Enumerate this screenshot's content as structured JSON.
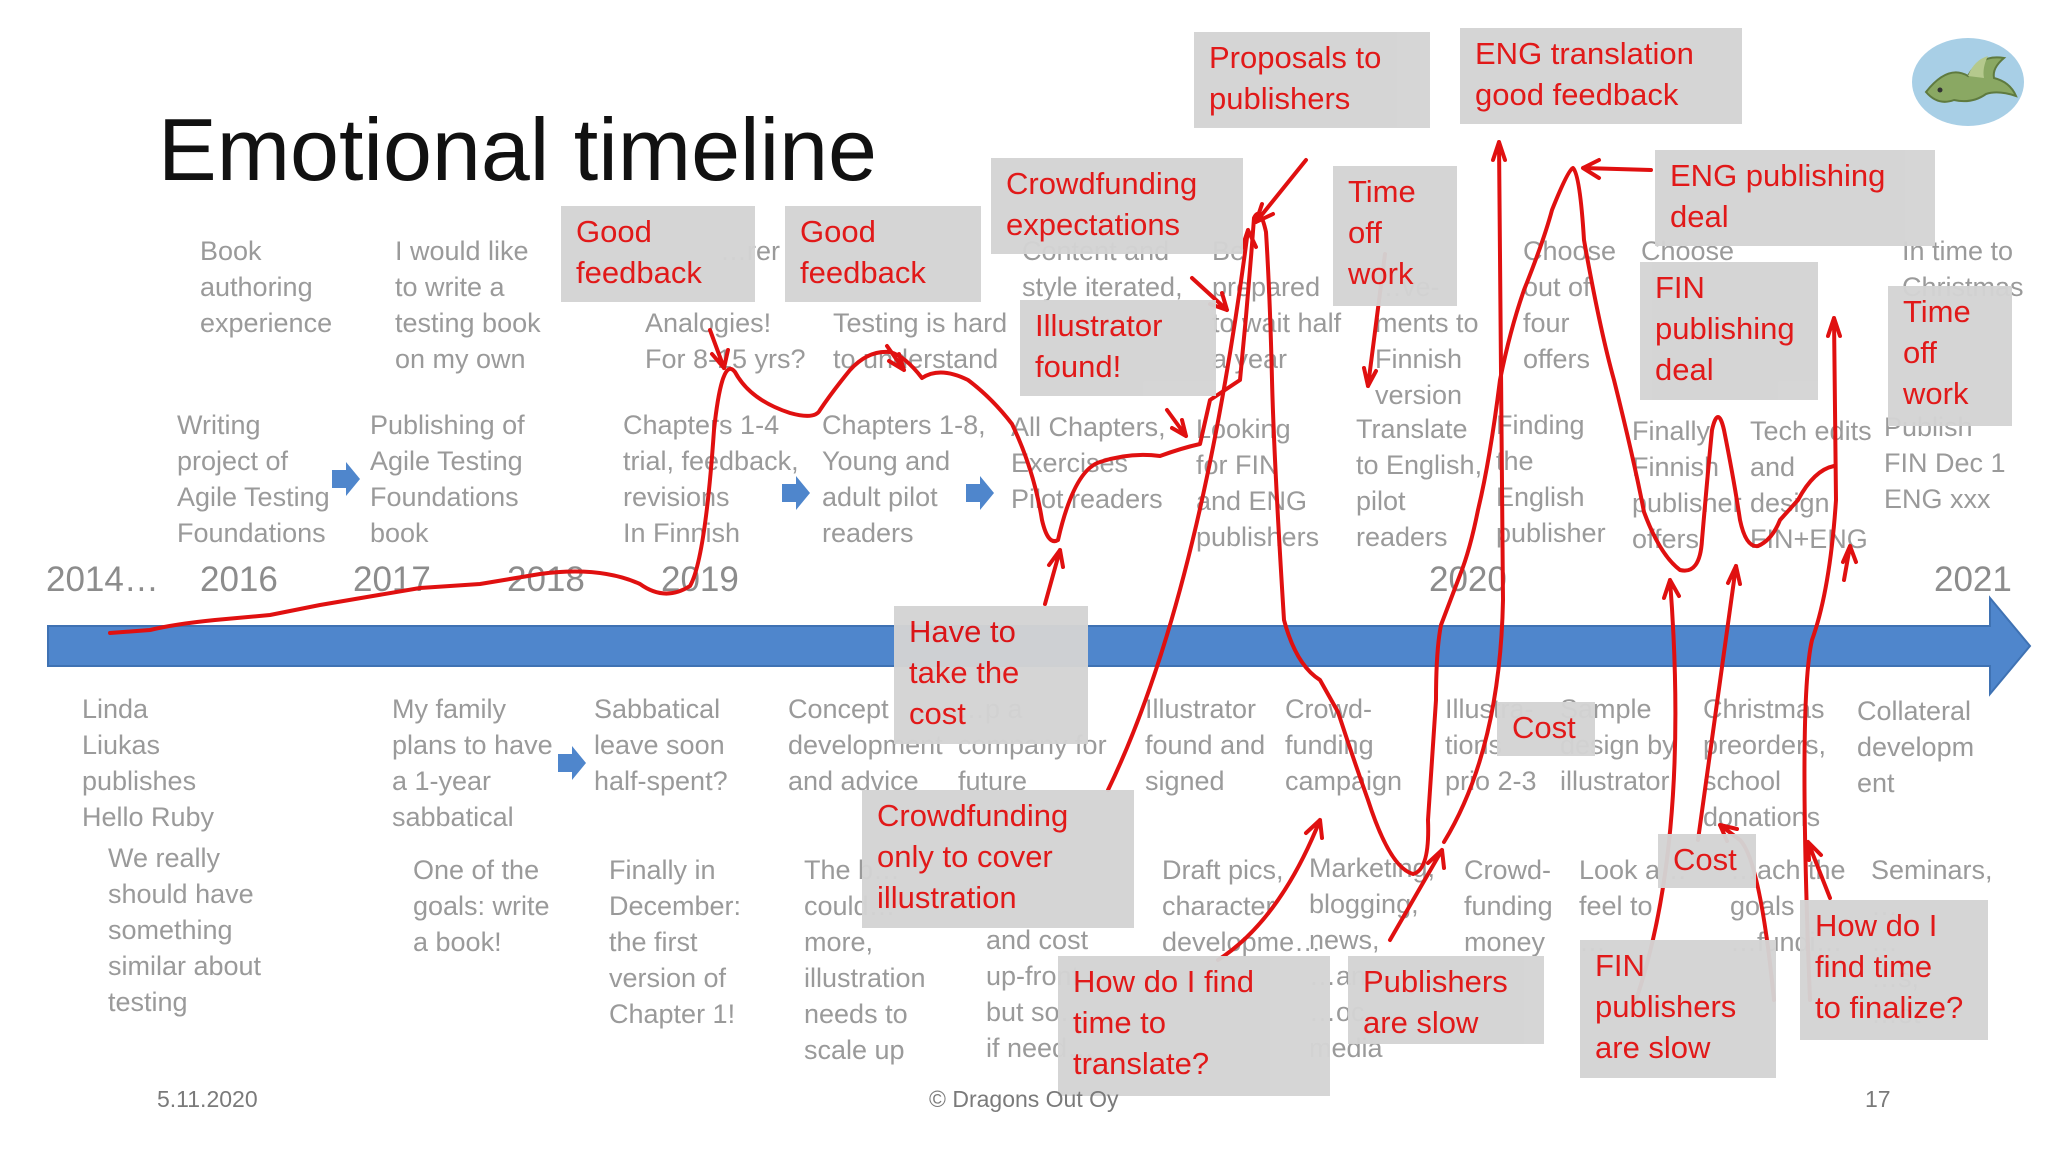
{
  "title": "Emotional timeline",
  "years": {
    "y2014": "2014…",
    "y2016": "2016",
    "y2017": "2017",
    "y2018": "2018",
    "y2019": "2019",
    "y2020": "2020",
    "y2021": "2021"
  },
  "upper_row1": {
    "book_authoring": "Book\nauthoring\nexperience",
    "write_testing_book": "I would like\nto write a\ntesting book\non my own",
    "col3": "…rer",
    "analogies": "Analogies!\nFor 8-15 yrs?",
    "testing_hard": "Testing is hard\nto understand",
    "content_style": "Content and\nstyle iterated,",
    "be_prepared": "Be\nprepared\nto wait half\na year",
    "requirements_finnish": "…ve-\nments to\nFinnish\nversion",
    "choose_four": "Choose\nout of\nfour\noffers",
    "choose_right": "Choose",
    "in_time": "In time to\nChristmas"
  },
  "upper_row2": {
    "writing_project": "Writing\nproject of\nAgile Testing\nFoundations",
    "publishing_book": "Publishing of\nAgile Testing\nFoundations\nbook",
    "chapters_1_4": "Chapters 1-4\ntrial, feedback,\nrevisions\nIn Finnish",
    "chapters_1_8": "Chapters 1-8,\nYoung and\nadult pilot\nreaders",
    "all_chapters": "All Chapters,\nExercises\nPilot readers",
    "looking_fin": "Looking\nfor FIN\nand ENG\npublishers",
    "translate_english": "Translate\nto English,\npilot\nreaders",
    "finding_english": "Finding\nthe\nEnglish\npublisher",
    "finally_finnish": "Finally\nFinnish\npublisher\noffers",
    "tech_edits": "Tech edits\nand\ndesign\nFIN+ENG",
    "publish": "Publish\nFIN Dec 1\nENG xxx"
  },
  "lower_row1": {
    "linda": "Linda\nLiukas\npublishes\nHello Ruby",
    "family": "My family\nplans to have\na 1-year\nsabbatical",
    "sabbatical": "Sabbatical\nleave soon\nhalf-spent?",
    "concept": "Concept\ndevelopment\nand advice",
    "company": "…p a\ncompany for\nfuture",
    "illustrator_found": "Illustrator\nfound and\nsigned",
    "crowdfunding_campaign": "Crowd-\nfunding\ncampaign",
    "illustrations": "Illustra-\ntions\nprio 2-3",
    "sample_design": "Sample\ndesign by\nillustrator",
    "christmas": "Christmas\npreorders,\nschool\ndonations",
    "collateral": "Collateral\ndevelopm\nent"
  },
  "lower_row2": {
    "we_really": "We really\nshould have\nsomething\nsimilar about\ntesting",
    "one_goal": "One of the\ngoals: write\na book!",
    "finally_december": "Finally in\nDecember:\nthe first\nversion of\nChapter 1!",
    "the_book": "The b…\ncould…\nmore,\nillustration\nneeds to\nscale up",
    "and_cost": "and cost\nup-front\nbut so…\nif need…",
    "draft_pics": "Draft pics,\ncharacter\ndevelopme…",
    "marketing": "Marketing,\nblogging,\nnews,\n…an…\n…oc…\nmedia",
    "crowd_money": "Crowd-\nfunding\nmoney",
    "look_feel": "Look a…\nfeel to\n…",
    "each_goals": "…ach the\ngoals\n…fundi…",
    "seminars": "Seminars,\n…\n…\n…s,\n…ot"
  },
  "red_boxes": {
    "proposals": "Proposals to\npublishers",
    "eng_translation": "ENG translation\ngood feedback",
    "eng_deal": "ENG publishing\ndeal",
    "crowd_expect": "Crowdfunding\nexpectations",
    "time_off_1": "Time\noff\nwork",
    "good_feedback_1": "Good\nfeedback",
    "good_feedback_2": "Good\nfeedback",
    "illustrator_found": "Illustrator\nfound!",
    "fin_deal": "FIN\npublishing\ndeal",
    "time_off_2": "Time\noff\nwork",
    "have_to_take": "Have to\ntake the\ncost",
    "cost_1": "Cost",
    "crowd_only": "Crowdfunding\nonly to cover\nillustration",
    "cost_2": "Cost",
    "how_translate": "How do I find\ntime to\ntranslate?",
    "publishers_slow": "Publishers\nare slow",
    "fin_slow": "FIN\npublishers\nare slow",
    "how_finalize": "How do I\nfind time\nto finalize?"
  },
  "footer": {
    "date": "5.11.2020",
    "copyright": "© Dragons Out Oy",
    "page": "17"
  },
  "colors": {
    "red": "#e01010",
    "arrow_blue": "#4f86cc",
    "box_gray": "#d4d4d4",
    "gray_text": "#9a9a9a"
  },
  "icons": [
    "blue-arrow-icon",
    "dragon-logo-icon"
  ]
}
